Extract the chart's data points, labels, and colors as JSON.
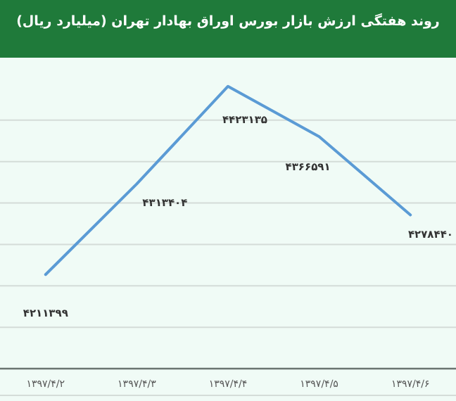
{
  "chart_data": {
    "type": "line",
    "title": "روند هفتگی ارزش بازار بورس اوراق بهادار تهران (میلیارد ریال)",
    "categories": [
      "۱۳۹۷/۴/۲",
      "۱۳۹۷/۴/۳",
      "۱۳۹۷/۴/۴",
      "۱۳۹۷/۴/۵",
      "۱۳۹۷/۴/۶"
    ],
    "series": [
      {
        "color": "#5b9bd5",
        "values": [
          4211399,
          4313404,
          4423135,
          4366591,
          4278440
        ],
        "value_labels": [
          "۴۲۱۱۳۹۹",
          "۴۳۱۳۴۰۴",
          "۴۴۲۳۱۳۵",
          "۴۳۶۶۵۹۱",
          "۴۲۷۸۴۴۰"
        ]
      }
    ],
    "grid": "y",
    "marker": "none",
    "line_style": "solid",
    "tick_labels": "x"
  }
}
